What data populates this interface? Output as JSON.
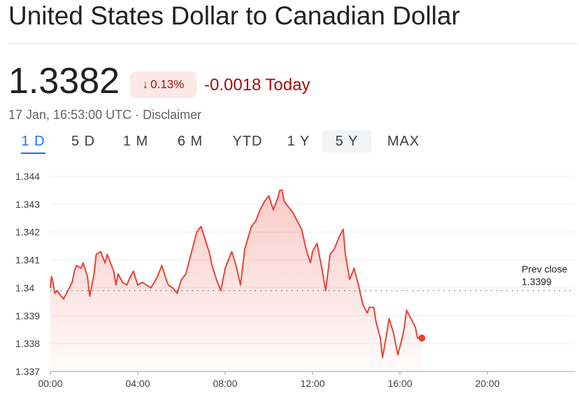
{
  "header": {
    "title": "United States Dollar to Canadian Dollar",
    "price": "1.3382",
    "change_percent": "0.13%",
    "change_abs": "-0.0018",
    "change_period": "Today",
    "timestamp": "17 Jan, 16:53:00 UTC",
    "separator": "·",
    "disclaimer": "Disclaimer"
  },
  "tabs": [
    {
      "label": "1 D",
      "active": true
    },
    {
      "label": "5 D"
    },
    {
      "label": "1 M"
    },
    {
      "label": "6 M"
    },
    {
      "label": "YTD"
    },
    {
      "label": "1 Y"
    },
    {
      "label": "5 Y",
      "highlight": true
    },
    {
      "label": "MAX"
    }
  ],
  "colors": {
    "line": "#ea4335",
    "down": "#a50e0e",
    "badge_bg": "#fce8e6",
    "accent": "#1a73e8"
  },
  "chart_data": {
    "type": "line",
    "x_unit": "hours",
    "x_ticks": [
      "00:00",
      "04:00",
      "08:00",
      "12:00",
      "16:00",
      "20:00"
    ],
    "y_ticks": [
      "1.344",
      "1.343",
      "1.342",
      "1.341",
      "1.34",
      "1.339",
      "1.338",
      "1.337"
    ],
    "ylim": [
      1.337,
      1.344
    ],
    "xlim": [
      0,
      24
    ],
    "prev_close_label": "Prev close",
    "prev_close_value": "1.3399",
    "prev_close": 1.3399,
    "series": [
      {
        "x": [
          0.0,
          0.05,
          0.1,
          0.2,
          0.3,
          0.5,
          0.6,
          0.8,
          1.0,
          1.1,
          1.2,
          1.4,
          1.5,
          1.7,
          1.8,
          2.0,
          2.1,
          2.3,
          2.5,
          2.6,
          2.7,
          2.9,
          3.0,
          3.1,
          3.3,
          3.5,
          3.6,
          3.8,
          4.0,
          4.2,
          4.4,
          4.6,
          4.9,
          5.1,
          5.3,
          5.4,
          5.6,
          5.8,
          6.0,
          6.2,
          6.5,
          6.7,
          6.9,
          7.1,
          7.3,
          7.4,
          7.6,
          7.8,
          8.0,
          8.1,
          8.3,
          8.5,
          8.7,
          8.9,
          9.2,
          9.4,
          9.6,
          9.8,
          10.0,
          10.2,
          10.4,
          10.5,
          10.6,
          10.7,
          10.9,
          11.1,
          11.3,
          11.5,
          11.7,
          11.9,
          12.0,
          12.2,
          12.4,
          12.6,
          12.8,
          13.0,
          13.2,
          13.4,
          13.5,
          13.7,
          13.9,
          14.1,
          14.3,
          14.5,
          14.6,
          14.8,
          14.9,
          15.1,
          15.2,
          15.4,
          15.5,
          15.7,
          15.9,
          16.1,
          16.2,
          16.3,
          16.5,
          16.7,
          16.8,
          17.0
        ],
        "y": [
          1.34,
          1.3404,
          1.3403,
          1.3398,
          1.3399,
          1.3397,
          1.3396,
          1.3399,
          1.3402,
          1.3406,
          1.3408,
          1.3407,
          1.3409,
          1.3404,
          1.3397,
          1.3405,
          1.3412,
          1.3413,
          1.3409,
          1.3412,
          1.341,
          1.3406,
          1.3401,
          1.3405,
          1.3402,
          1.3401,
          1.3403,
          1.3406,
          1.3401,
          1.3402,
          1.3401,
          1.34,
          1.3404,
          1.3408,
          1.3403,
          1.3401,
          1.34,
          1.3398,
          1.3403,
          1.3405,
          1.3414,
          1.342,
          1.3422,
          1.3417,
          1.3412,
          1.3408,
          1.3403,
          1.3399,
          1.3407,
          1.3409,
          1.3413,
          1.3408,
          1.3401,
          1.3414,
          1.3422,
          1.3424,
          1.3428,
          1.3431,
          1.3433,
          1.3428,
          1.3432,
          1.3435,
          1.3435,
          1.3431,
          1.3429,
          1.3427,
          1.3424,
          1.3421,
          1.3414,
          1.3409,
          1.3413,
          1.3416,
          1.3408,
          1.3399,
          1.3412,
          1.3414,
          1.3418,
          1.3421,
          1.3412,
          1.3403,
          1.3407,
          1.3401,
          1.3394,
          1.3391,
          1.3393,
          1.3393,
          1.3388,
          1.3382,
          1.3375,
          1.3384,
          1.3389,
          1.3384,
          1.3376,
          1.3382,
          1.3386,
          1.3392,
          1.3389,
          1.3386,
          1.3382,
          1.3382
        ]
      }
    ]
  }
}
